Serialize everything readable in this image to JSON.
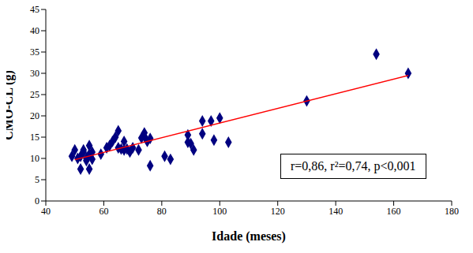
{
  "chart_data": {
    "type": "scatter",
    "x_label": "Idade (meses)",
    "y_label": "CMO-CL (g)",
    "xlim": [
      40,
      180
    ],
    "xticks": [
      40,
      60,
      80,
      100,
      120,
      140,
      160,
      180
    ],
    "ylim": [
      0,
      45
    ],
    "yticks": [
      0,
      5,
      10,
      15,
      20,
      25,
      30,
      35,
      40,
      45
    ],
    "grid": false,
    "annotations": [
      "r=0,86, r²=0,74, p<0,001"
    ],
    "series": [
      {
        "type": "scatter",
        "color": "#000080",
        "marker": "diamond",
        "x": [
          49,
          50,
          51,
          52,
          52,
          53,
          53,
          54,
          54,
          55,
          55,
          55,
          56,
          56,
          59,
          61,
          62,
          63,
          64,
          65,
          65,
          66,
          67,
          67,
          68,
          69,
          70,
          72,
          73,
          74,
          74,
          75,
          76,
          76,
          81,
          83,
          89,
          89,
          90,
          91,
          94,
          94,
          97,
          98,
          100,
          103,
          130,
          154,
          165
        ],
        "values": [
          10.5,
          12,
          10,
          7.5,
          10.5,
          11.5,
          12,
          10,
          9.5,
          13,
          11,
          7.5,
          9.8,
          11.5,
          11,
          12.5,
          13,
          14,
          15,
          12.5,
          16.5,
          12.2,
          14,
          12,
          12.2,
          11.5,
          12.5,
          12,
          14.8,
          15.2,
          16,
          14,
          8.3,
          14.7,
          10.5,
          9.8,
          13.8,
          15.5,
          13.5,
          12,
          18.8,
          15.8,
          18.8,
          14.3,
          19.5,
          13.8,
          23.5,
          34.5,
          30
        ]
      },
      {
        "type": "line",
        "color": "#ff0000",
        "x": [
          50,
          165
        ],
        "values": [
          9.7,
          29.5
        ]
      }
    ]
  }
}
